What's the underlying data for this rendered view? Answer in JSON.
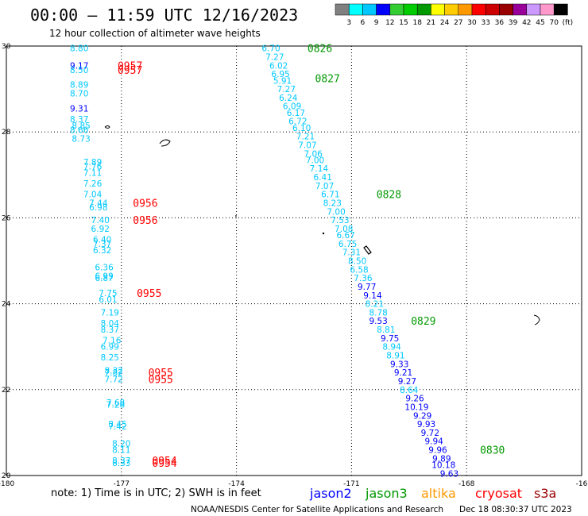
{
  "title": "00:00 – 11:59 UTC 12/16/2023",
  "subtitle": "12 hour collection of altimeter wave heights",
  "note": "note: 1) Time is in UTC; 2) SWH is in feet",
  "credit": "NOAA/NESDIS Center for Satellite Applications and Research",
  "timestamp": "Dec 18 08:30:37 UTC 2023",
  "colorbar": {
    "labels": [
      "3",
      "6",
      "9",
      "12",
      "15",
      "18",
      "21",
      "24",
      "27",
      "30",
      "33",
      "36",
      "39",
      "42",
      "45",
      "70",
      "(ft)"
    ],
    "colors": [
      "#808080",
      "#00ffff",
      "#00c8ff",
      "#0000ff",
      "#33cc33",
      "#00cc00",
      "#009900",
      "#ffff00",
      "#ffcc00",
      "#ff9900",
      "#ff0000",
      "#cc0000",
      "#990000",
      "#990099",
      "#cc99ff",
      "#ff99cc",
      "#000000"
    ]
  },
  "satellites": [
    {
      "name": "jason2",
      "color": "#0000ff"
    },
    {
      "name": "jason3",
      "color": "#009900"
    },
    {
      "name": "altika",
      "color": "#ff9900"
    },
    {
      "name": "cryosat",
      "color": "#ff0000"
    },
    {
      "name": "s3a",
      "color": "#990000"
    }
  ],
  "chart_data": {
    "type": "scatter",
    "xlim": [
      -180,
      -165
    ],
    "ylim": [
      20,
      30
    ],
    "x_ticks": [
      "-180",
      "-177",
      "-174",
      "-171",
      "-168",
      "-16"
    ],
    "y_ticks": [
      "30",
      "28",
      "26",
      "24",
      "22",
      "20"
    ],
    "grid": true,
    "series": [
      {
        "name": "cryosat",
        "color": "#ff0000",
        "times": [
          {
            "label": "0957",
            "lon": -177.1,
            "lat": 29.55
          },
          {
            "label": "0957",
            "lon": -177.1,
            "lat": 29.45
          },
          {
            "label": "0956",
            "lon": -176.7,
            "lat": 26.35
          },
          {
            "label": "0956",
            "lon": -176.7,
            "lat": 25.95
          },
          {
            "label": "0955",
            "lon": -176.6,
            "lat": 24.25
          },
          {
            "label": "0955",
            "lon": -176.3,
            "lat": 22.4
          },
          {
            "label": "0955",
            "lon": -176.3,
            "lat": 22.25
          },
          {
            "label": "0954",
            "lon": -176.2,
            "lat": 20.35
          },
          {
            "label": "0954",
            "lon": -176.2,
            "lat": 20.3
          }
        ],
        "points": [
          {
            "v": "8.80",
            "lon": -178.1,
            "lat": 29.95,
            "c": "#00c8ff"
          },
          {
            "v": "9.17",
            "lon": -178.1,
            "lat": 29.55,
            "c": "#0000ff"
          },
          {
            "v": "8.50",
            "lon": -178.1,
            "lat": 29.45,
            "c": "#00c8ff"
          },
          {
            "v": "8.89",
            "lon": -178.1,
            "lat": 29.1,
            "c": "#00c8ff"
          },
          {
            "v": "8.70",
            "lon": -178.1,
            "lat": 28.9,
            "c": "#00c8ff"
          },
          {
            "v": "9.31",
            "lon": -178.1,
            "lat": 28.55,
            "c": "#0000ff"
          },
          {
            "v": "8.37",
            "lon": -178.1,
            "lat": 28.3,
            "c": "#00c8ff"
          },
          {
            "v": "8.85",
            "lon": -178.05,
            "lat": 28.15,
            "c": "#00c8ff"
          },
          {
            "v": "8.66",
            "lon": -178.1,
            "lat": 28.05,
            "c": "#00c8ff"
          },
          {
            "v": "8.73",
            "lon": -178.05,
            "lat": 27.85,
            "c": "#00c8ff"
          },
          {
            "v": "7.89",
            "lon": -177.75,
            "lat": 27.3,
            "c": "#00c8ff"
          },
          {
            "v": "7.76",
            "lon": -177.75,
            "lat": 27.2,
            "c": "#00c8ff"
          },
          {
            "v": "7.11",
            "lon": -177.75,
            "lat": 27.05,
            "c": "#00c8ff"
          },
          {
            "v": "7.26",
            "lon": -177.75,
            "lat": 26.8,
            "c": "#00c8ff"
          },
          {
            "v": "7.04",
            "lon": -177.75,
            "lat": 26.55,
            "c": "#00c8ff"
          },
          {
            "v": "7.44",
            "lon": -177.6,
            "lat": 26.35,
            "c": "#00c8ff"
          },
          {
            "v": "6.98",
            "lon": -177.6,
            "lat": 26.25,
            "c": "#00c8ff"
          },
          {
            "v": "7.40",
            "lon": -177.55,
            "lat": 25.95,
            "c": "#00c8ff"
          },
          {
            "v": "6.92",
            "lon": -177.55,
            "lat": 25.75,
            "c": "#00c8ff"
          },
          {
            "v": "6.40",
            "lon": -177.5,
            "lat": 25.5,
            "c": "#00c8ff"
          },
          {
            "v": "7.37",
            "lon": -177.5,
            "lat": 25.4,
            "c": "#00c8ff"
          },
          {
            "v": "6.32",
            "lon": -177.5,
            "lat": 25.25,
            "c": "#00c8ff"
          },
          {
            "v": "6.36",
            "lon": -177.45,
            "lat": 24.85,
            "c": "#00c8ff"
          },
          {
            "v": "6.99",
            "lon": -177.45,
            "lat": 24.65,
            "c": "#00c8ff"
          },
          {
            "v": "6.87",
            "lon": -177.45,
            "lat": 24.6,
            "c": "#00c8ff"
          },
          {
            "v": "7.75",
            "lon": -177.35,
            "lat": 24.25,
            "c": "#00c8ff"
          },
          {
            "v": "6.01",
            "lon": -177.35,
            "lat": 24.1,
            "c": "#00c8ff"
          },
          {
            "v": "7.19",
            "lon": -177.3,
            "lat": 23.8,
            "c": "#00c8ff"
          },
          {
            "v": "8.04",
            "lon": -177.3,
            "lat": 23.55,
            "c": "#00c8ff"
          },
          {
            "v": "8.37",
            "lon": -177.3,
            "lat": 23.4,
            "c": "#00c8ff"
          },
          {
            "v": "7.16",
            "lon": -177.25,
            "lat": 23.15,
            "c": "#00c8ff"
          },
          {
            "v": "6.99",
            "lon": -177.3,
            "lat": 23.0,
            "c": "#00c8ff"
          },
          {
            "v": "8.25",
            "lon": -177.3,
            "lat": 22.75,
            "c": "#00c8ff"
          },
          {
            "v": "8.32",
            "lon": -177.2,
            "lat": 22.45,
            "c": "#00c8ff"
          },
          {
            "v": "7.82",
            "lon": -177.2,
            "lat": 22.4,
            "c": "#00c8ff"
          },
          {
            "v": "7.72",
            "lon": -177.2,
            "lat": 22.25,
            "c": "#00c8ff"
          },
          {
            "v": "7.68",
            "lon": -177.15,
            "lat": 21.7,
            "c": "#00c8ff"
          },
          {
            "v": "7.28",
            "lon": -177.15,
            "lat": 21.65,
            "c": "#00c8ff"
          },
          {
            "v": "8.45",
            "lon": -177.1,
            "lat": 21.2,
            "c": "#00c8ff"
          },
          {
            "v": "7.42",
            "lon": -177.1,
            "lat": 21.15,
            "c": "#00c8ff"
          },
          {
            "v": "8.20",
            "lon": -177.0,
            "lat": 20.75,
            "c": "#00c8ff"
          },
          {
            "v": "8.11",
            "lon": -177.0,
            "lat": 20.6,
            "c": "#00c8ff"
          },
          {
            "v": "8.37",
            "lon": -177.0,
            "lat": 20.35,
            "c": "#00c8ff"
          },
          {
            "v": "8.33",
            "lon": -177.0,
            "lat": 20.3,
            "c": "#00c8ff"
          }
        ]
      },
      {
        "name": "jason3",
        "color": "#009900",
        "times": [
          {
            "label": "0826",
            "lon": -172.15,
            "lat": 29.95
          },
          {
            "label": "0827",
            "lon": -171.95,
            "lat": 29.25
          },
          {
            "label": "0828",
            "lon": -170.35,
            "lat": 26.55
          },
          {
            "label": "0829",
            "lon": -169.45,
            "lat": 23.6
          },
          {
            "label": "0830",
            "lon": -167.65,
            "lat": 20.6
          }
        ],
        "points": [
          {
            "v": "6.70",
            "lon": -173.1,
            "lat": 29.95,
            "c": "#00c8ff"
          },
          {
            "v": "7.27",
            "lon": -173.0,
            "lat": 29.75,
            "c": "#00c8ff"
          },
          {
            "v": "6.02",
            "lon": -172.9,
            "lat": 29.55,
            "c": "#00c8ff"
          },
          {
            "v": "6.95",
            "lon": -172.85,
            "lat": 29.35,
            "c": "#00c8ff"
          },
          {
            "v": "5.91",
            "lon": -172.8,
            "lat": 29.2,
            "c": "#00c8ff"
          },
          {
            "v": "7.27",
            "lon": -172.7,
            "lat": 29.0,
            "c": "#00c8ff"
          },
          {
            "v": "6.24",
            "lon": -172.65,
            "lat": 28.8,
            "c": "#00c8ff"
          },
          {
            "v": "6.09",
            "lon": -172.55,
            "lat": 28.6,
            "c": "#00c8ff"
          },
          {
            "v": "6.17",
            "lon": -172.45,
            "lat": 28.45,
            "c": "#00c8ff"
          },
          {
            "v": "6.72",
            "lon": -172.4,
            "lat": 28.25,
            "c": "#00c8ff"
          },
          {
            "v": "6.10",
            "lon": -172.3,
            "lat": 28.1,
            "c": "#00c8ff"
          },
          {
            "v": "7.21",
            "lon": -172.2,
            "lat": 27.9,
            "c": "#00c8ff"
          },
          {
            "v": "7.07",
            "lon": -172.15,
            "lat": 27.7,
            "c": "#00c8ff"
          },
          {
            "v": "7.06",
            "lon": -172.0,
            "lat": 27.5,
            "c": "#00c8ff"
          },
          {
            "v": "7.00",
            "lon": -171.95,
            "lat": 27.35,
            "c": "#00c8ff"
          },
          {
            "v": "7.14",
            "lon": -171.85,
            "lat": 27.15,
            "c": "#00c8ff"
          },
          {
            "v": "6.41",
            "lon": -171.75,
            "lat": 26.95,
            "c": "#00c8ff"
          },
          {
            "v": "7.07",
            "lon": -171.7,
            "lat": 26.75,
            "c": "#00c8ff"
          },
          {
            "v": "6.71",
            "lon": -171.55,
            "lat": 26.55,
            "c": "#00c8ff"
          },
          {
            "v": "8.23",
            "lon": -171.5,
            "lat": 26.35,
            "c": "#00c8ff"
          },
          {
            "v": "7.00",
            "lon": -171.4,
            "lat": 26.15,
            "c": "#00c8ff"
          },
          {
            "v": "7.53",
            "lon": -171.3,
            "lat": 25.95,
            "c": "#00c8ff"
          },
          {
            "v": "7.08",
            "lon": -171.2,
            "lat": 25.75,
            "c": "#00c8ff"
          },
          {
            "v": "6.67",
            "lon": -171.15,
            "lat": 25.6,
            "c": "#00c8ff"
          },
          {
            "v": "6.75",
            "lon": -171.1,
            "lat": 25.4,
            "c": "#00c8ff"
          },
          {
            "v": "7.31",
            "lon": -171.0,
            "lat": 25.2,
            "c": "#00c8ff"
          },
          {
            "v": "8.50",
            "lon": -170.85,
            "lat": 25.0,
            "c": "#00c8ff"
          },
          {
            "v": "6.58",
            "lon": -170.8,
            "lat": 24.8,
            "c": "#00c8ff"
          },
          {
            "v": "7.36",
            "lon": -170.7,
            "lat": 24.6,
            "c": "#00c8ff"
          },
          {
            "v": "9.77",
            "lon": -170.6,
            "lat": 24.4,
            "c": "#0000ff"
          },
          {
            "v": "9.14",
            "lon": -170.45,
            "lat": 24.2,
            "c": "#0000ff"
          },
          {
            "v": "8.21",
            "lon": -170.4,
            "lat": 24.0,
            "c": "#00c8ff"
          },
          {
            "v": "8.78",
            "lon": -170.3,
            "lat": 23.8,
            "c": "#00c8ff"
          },
          {
            "v": "9.53",
            "lon": -170.3,
            "lat": 23.6,
            "c": "#0000ff"
          },
          {
            "v": "8.81",
            "lon": -170.1,
            "lat": 23.4,
            "c": "#00c8ff"
          },
          {
            "v": "9.75",
            "lon": -170.0,
            "lat": 23.2,
            "c": "#0000ff"
          },
          {
            "v": "8.94",
            "lon": -169.95,
            "lat": 23.0,
            "c": "#00c8ff"
          },
          {
            "v": "8.91",
            "lon": -169.85,
            "lat": 22.8,
            "c": "#00c8ff"
          },
          {
            "v": "9.33",
            "lon": -169.75,
            "lat": 22.6,
            "c": "#0000ff"
          },
          {
            "v": "9.21",
            "lon": -169.65,
            "lat": 22.4,
            "c": "#0000ff"
          },
          {
            "v": "9.27",
            "lon": -169.55,
            "lat": 22.2,
            "c": "#0000ff"
          },
          {
            "v": "8.64",
            "lon": -169.5,
            "lat": 22.0,
            "c": "#00c8ff"
          },
          {
            "v": "9.26",
            "lon": -169.35,
            "lat": 21.8,
            "c": "#0000ff"
          },
          {
            "v": "10.19",
            "lon": -169.3,
            "lat": 21.6,
            "c": "#0000ff"
          },
          {
            "v": "9.29",
            "lon": -169.15,
            "lat": 21.4,
            "c": "#0000ff"
          },
          {
            "v": "9.93",
            "lon": -169.05,
            "lat": 21.2,
            "c": "#0000ff"
          },
          {
            "v": "9.72",
            "lon": -168.95,
            "lat": 21.0,
            "c": "#0000ff"
          },
          {
            "v": "9.94",
            "lon": -168.85,
            "lat": 20.8,
            "c": "#0000ff"
          },
          {
            "v": "9.96",
            "lon": -168.75,
            "lat": 20.6,
            "c": "#0000ff"
          },
          {
            "v": "9.89",
            "lon": -168.65,
            "lat": 20.4,
            "c": "#0000ff"
          },
          {
            "v": "10.18",
            "lon": -168.6,
            "lat": 20.25,
            "c": "#0000ff"
          },
          {
            "v": "9.63",
            "lon": -168.45,
            "lat": 20.05,
            "c": "#0000ff"
          }
        ]
      }
    ]
  }
}
